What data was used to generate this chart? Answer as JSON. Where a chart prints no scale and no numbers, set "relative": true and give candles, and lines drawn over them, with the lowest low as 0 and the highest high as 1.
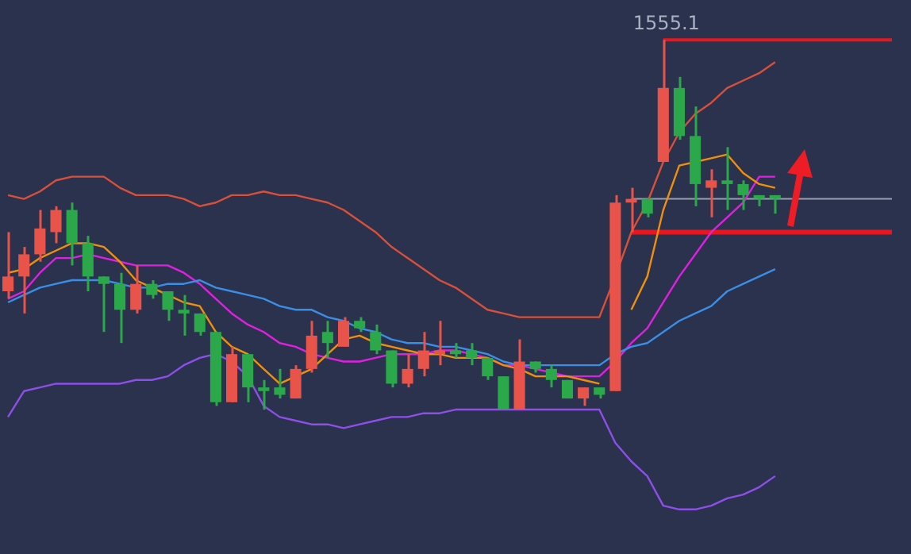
{
  "chart_data": {
    "type": "candlestick",
    "relative": true,
    "categories": [
      null,
      null,
      null,
      null,
      null,
      null,
      null,
      null,
      null,
      null,
      null,
      null,
      null,
      null,
      null,
      null,
      null,
      null,
      null,
      null,
      null,
      null,
      null,
      null,
      null,
      null,
      null,
      null,
      null,
      null,
      null,
      null,
      null,
      null,
      null,
      null,
      null,
      null,
      null,
      null,
      null,
      null,
      null,
      null,
      null,
      null,
      null,
      null,
      null,
      null,
      null,
      null,
      null,
      null,
      null,
      null,
      null
    ],
    "ohlc": [
      [
        0.32,
        0.48,
        0.3,
        0.36
      ],
      [
        0.36,
        0.44,
        0.26,
        0.42
      ],
      [
        0.42,
        0.54,
        0.4,
        0.49
      ],
      [
        0.48,
        0.55,
        0.45,
        0.54
      ],
      [
        0.54,
        0.56,
        0.39,
        0.45
      ],
      [
        0.45,
        0.47,
        0.32,
        0.36
      ],
      [
        0.36,
        0.36,
        0.21,
        0.34
      ],
      [
        0.34,
        0.37,
        0.18,
        0.27
      ],
      [
        0.27,
        0.39,
        0.26,
        0.34
      ],
      [
        0.34,
        0.35,
        0.3,
        0.31
      ],
      [
        0.32,
        0.32,
        0.24,
        0.27
      ],
      [
        0.27,
        0.31,
        0.2,
        0.26
      ],
      [
        0.26,
        0.26,
        0.2,
        0.21
      ],
      [
        0.21,
        0.21,
        0.01,
        0.02
      ],
      [
        0.02,
        0.17,
        0.02,
        0.15
      ],
      [
        0.15,
        0.15,
        0.02,
        0.06
      ],
      [
        0.06,
        0.08,
        0,
        0.05
      ],
      [
        0.06,
        0.11,
        0.03,
        0.04
      ],
      [
        0.03,
        0.12,
        0.03,
        0.11
      ],
      [
        0.11,
        0.24,
        0.1,
        0.2
      ],
      [
        0.21,
        0.24,
        0.14,
        0.18
      ],
      [
        0.17,
        0.25,
        0.17,
        0.24
      ],
      [
        0.24,
        0.25,
        0.21,
        0.22
      ],
      [
        0.21,
        0.23,
        0.15,
        0.16
      ],
      [
        0.16,
        0.16,
        0.06,
        0.07
      ],
      [
        0.07,
        0.15,
        0.06,
        0.11
      ],
      [
        0.11,
        0.21,
        0.09,
        0.16
      ],
      [
        0.15,
        0.24,
        0.12,
        0.16
      ],
      [
        0.16,
        0.18,
        0.14,
        0.15
      ],
      [
        0.16,
        0.18,
        0.12,
        0.14
      ],
      [
        0.14,
        0.14,
        0.08,
        0.09
      ],
      [
        0.09,
        0.09,
        0,
        0
      ],
      [
        0,
        0.19,
        0,
        0.13
      ],
      [
        0.13,
        0.13,
        0.1,
        0.11
      ],
      [
        0.11,
        0.12,
        0.06,
        0.08
      ],
      [
        0.08,
        0.08,
        0.03,
        0.03
      ],
      [
        0.03,
        0.06,
        0.01,
        0.06
      ],
      [
        0.06,
        0.06,
        0.03,
        0.04
      ],
      [
        0.05,
        0.58,
        0.05,
        0.56
      ],
      [
        0.56,
        0.6,
        0.48,
        0.57
      ],
      [
        0.57,
        0.57,
        0.52,
        0.53
      ],
      [
        0.67,
        1,
        0.67,
        0.87
      ],
      [
        0.87,
        0.9,
        0.73,
        0.74
      ],
      [
        0.74,
        0.82,
        0.55,
        0.61
      ],
      [
        0.6,
        0.65,
        0.52,
        0.62
      ],
      [
        0.62,
        0.71,
        0.54,
        0.61
      ],
      [
        0.61,
        0.62,
        0.54,
        0.58
      ],
      [
        0.58,
        0.58,
        0.55,
        0.57
      ],
      [
        0.58,
        0.58,
        0.53,
        0.57
      ],
      null,
      null,
      null,
      null,
      null,
      null,
      null,
      null
    ],
    "colors": [
      "#e8534a",
      "#e8534a",
      "#e8534a",
      "#e8534a",
      "#2aa84a",
      "#2aa84a",
      "#2aa84a",
      "#2aa84a",
      "#e8534a",
      "#2aa84a",
      "#2aa84a",
      "#2aa84a",
      "#2aa84a",
      "#2aa84a",
      "#e8534a",
      "#2aa84a",
      "#2aa84a",
      "#2aa84a",
      "#e8534a",
      "#e8534a",
      "#2aa84a",
      "#e8534a",
      "#2aa84a",
      "#2aa84a",
      "#2aa84a",
      "#e8534a",
      "#e8534a",
      "#e8534a",
      "#2aa84a",
      "#2aa84a",
      "#2aa84a",
      "#2aa84a",
      "#e8534a",
      "#2aa84a",
      "#2aa84a",
      "#2aa84a",
      "#e8534a",
      "#2aa84a",
      "#e8534a",
      "#e8534a",
      "#2aa84a",
      "#e8534a",
      "#2aa84a",
      "#2aa84a",
      "#e8534a",
      "#2aa84a",
      "#2aa84a",
      "#2aa84a",
      "#2aa84a",
      null,
      null,
      null,
      null,
      null,
      null,
      null,
      null
    ],
    "annotations": [
      {
        "text": "1555.1",
        "y": 1
      }
    ],
    "series": [
      {
        "type": "line",
        "color": "#d9503a",
        "values": [
          0.58,
          0.57,
          0.59,
          0.62,
          0.63,
          0.63,
          0.63,
          0.6,
          0.58,
          0.58,
          0.58,
          0.57,
          0.55,
          0.56,
          0.58,
          0.58,
          0.59,
          0.58,
          0.58,
          0.57,
          0.56,
          0.54,
          0.51,
          0.48,
          0.44,
          0.41,
          0.38,
          0.35,
          0.33,
          0.3,
          0.27,
          0.26,
          0.25,
          0.25,
          0.25,
          0.25,
          0.25,
          0.25,
          0.36,
          0.48,
          0.56,
          0.67,
          0.75,
          0.8,
          0.83,
          0.87,
          0.89,
          0.91,
          0.94,
          null,
          null,
          null,
          null,
          null,
          null,
          null,
          null
        ]
      },
      {
        "type": "line",
        "color": "#3a8ee6",
        "values": [
          0.29,
          0.31,
          0.33,
          0.34,
          0.35,
          0.35,
          0.35,
          0.34,
          0.33,
          0.33,
          0.34,
          0.34,
          0.35,
          0.33,
          0.32,
          0.31,
          0.3,
          0.28,
          0.27,
          0.27,
          0.25,
          0.24,
          0.22,
          0.21,
          0.19,
          0.18,
          0.18,
          0.17,
          0.17,
          0.16,
          0.15,
          0.13,
          0.12,
          0.12,
          0.12,
          0.12,
          0.12,
          0.12,
          0.15,
          0.17,
          0.18,
          0.21,
          0.24,
          0.26,
          0.28,
          0.32,
          0.34,
          0.36,
          0.38,
          null,
          null,
          null,
          null,
          null,
          null,
          null,
          null
        ]
      },
      {
        "type": "line",
        "color": "#8e4ee8",
        "values": [
          -0.02,
          0.05,
          0.06,
          0.07,
          0.07,
          0.07,
          0.07,
          0.07,
          0.08,
          0.08,
          0.09,
          0.12,
          0.14,
          0.15,
          0.13,
          0.09,
          0.01,
          -0.02,
          -0.03,
          -0.04,
          -0.04,
          -0.05,
          -0.04,
          -0.03,
          -0.02,
          -0.02,
          -0.01,
          -0.01,
          0,
          0,
          0,
          0,
          0,
          0,
          0,
          0,
          0,
          0,
          -0.09,
          -0.14,
          -0.18,
          -0.26,
          -0.27,
          -0.27,
          -0.26,
          -0.24,
          -0.23,
          -0.21,
          -0.18,
          null,
          null,
          null,
          null,
          null,
          null,
          null,
          null
        ]
      },
      {
        "type": "line",
        "color": "#f0900a",
        "values": [
          0.37,
          0.38,
          0.41,
          0.43,
          0.45,
          0.45,
          0.44,
          0.4,
          0.35,
          0.33,
          0.31,
          0.29,
          0.28,
          0.21,
          0.17,
          0.15,
          0.11,
          0.07,
          0.09,
          0.11,
          0.15,
          0.19,
          0.2,
          0.18,
          0.17,
          0.16,
          0.15,
          0.15,
          0.14,
          0.14,
          0.14,
          0.12,
          0.11,
          0.09,
          0.09,
          0.09,
          0.08,
          0.07,
          null,
          0.27,
          0.36,
          0.54,
          0.66,
          0.67,
          0.68,
          0.69,
          0.64,
          0.61,
          0.6,
          null,
          null,
          null,
          null,
          null,
          null,
          null,
          null
        ]
      },
      {
        "type": "line",
        "color": "#e020e0",
        "values": [
          0.3,
          0.32,
          0.37,
          0.41,
          0.41,
          0.42,
          0.41,
          0.4,
          0.39,
          0.39,
          0.39,
          0.37,
          0.34,
          0.3,
          0.26,
          0.23,
          0.21,
          0.18,
          0.17,
          0.15,
          0.14,
          0.13,
          0.13,
          0.14,
          0.15,
          0.15,
          0.15,
          0.16,
          0.16,
          0.15,
          0.14,
          0.12,
          0.12,
          0.11,
          0.1,
          0.09,
          0.09,
          0.09,
          0.13,
          0.18,
          0.22,
          0.29,
          0.36,
          0.42,
          0.48,
          0.52,
          0.56,
          0.63,
          0.63,
          null,
          null,
          null,
          null,
          null,
          null,
          null,
          null
        ]
      }
    ],
    "ref_lines": [
      {
        "axis": "y",
        "value": 1,
        "color": "#e8171f"
      },
      {
        "axis": "y",
        "value": 0.48,
        "color": "#e8171f"
      },
      {
        "axis": "y",
        "value": 0.57,
        "color": "#9aa0b0"
      }
    ]
  }
}
